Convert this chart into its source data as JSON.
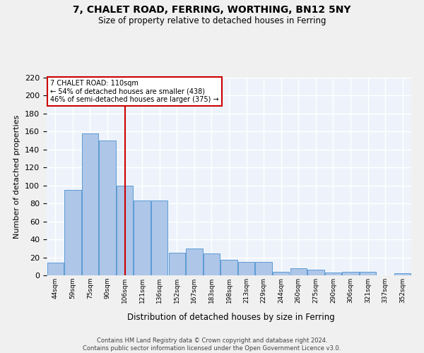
{
  "title": "7, CHALET ROAD, FERRING, WORTHING, BN12 5NY",
  "subtitle": "Size of property relative to detached houses in Ferring",
  "xlabel": "Distribution of detached houses by size in Ferring",
  "ylabel": "Number of detached properties",
  "categories": [
    "44sqm",
    "59sqm",
    "75sqm",
    "90sqm",
    "106sqm",
    "121sqm",
    "136sqm",
    "152sqm",
    "167sqm",
    "183sqm",
    "198sqm",
    "213sqm",
    "229sqm",
    "244sqm",
    "260sqm",
    "275sqm",
    "290sqm",
    "306sqm",
    "321sqm",
    "337sqm",
    "352sqm"
  ],
  "values": [
    14,
    95,
    158,
    150,
    100,
    83,
    83,
    25,
    30,
    24,
    17,
    15,
    15,
    4,
    8,
    6,
    3,
    4,
    4,
    0,
    2
  ],
  "bar_color": "#aec6e8",
  "bar_edge_color": "#5b9bd5",
  "background_color": "#eef3fb",
  "grid_color": "#ffffff",
  "property_line_x": 4.5,
  "property_label": "7 CHALET ROAD: 110sqm",
  "annotation_line1": "← 54% of detached houses are smaller (438)",
  "annotation_line2": "46% of semi-detached houses are larger (375) →",
  "annotation_box_color": "#ffffff",
  "annotation_box_edge": "#cc0000",
  "red_line_color": "#cc0000",
  "ylim": [
    0,
    220
  ],
  "yticks": [
    0,
    20,
    40,
    60,
    80,
    100,
    120,
    140,
    160,
    180,
    200,
    220
  ],
  "footnote1": "Contains HM Land Registry data © Crown copyright and database right 2024.",
  "footnote2": "Contains public sector information licensed under the Open Government Licence v3.0."
}
